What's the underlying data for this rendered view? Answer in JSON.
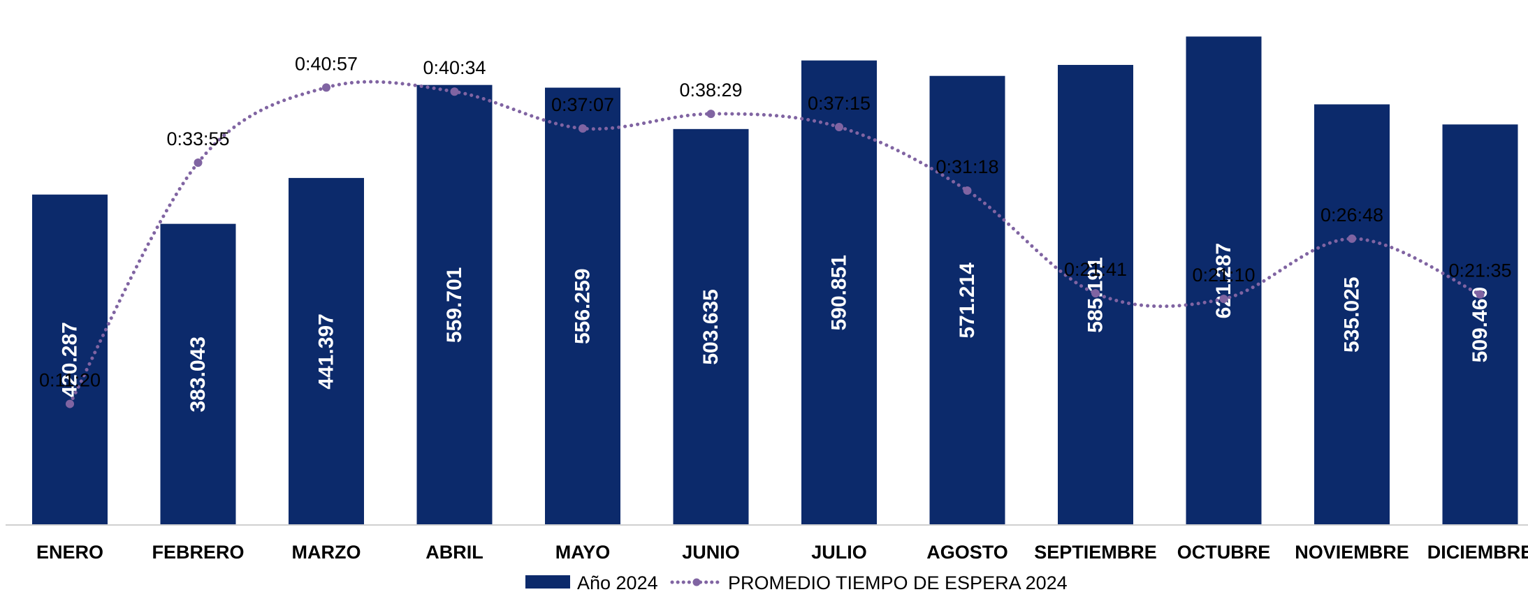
{
  "chart_data": {
    "type": "bar",
    "categories": [
      "ENERO",
      "FEBRERO",
      "MARZO",
      "ABRIL",
      "MAYO",
      "JUNIO",
      "JULIO",
      "AGOSTO",
      "SEPTIEMBRE",
      "OCTUBRE",
      "NOVIEMBRE",
      "DICIEMBRE"
    ],
    "series": [
      {
        "name": "Año 2024",
        "type": "bar",
        "color": "#0c2a6b",
        "values": [
          420287,
          383043,
          441397,
          559701,
          556259,
          503635,
          590851,
          571214,
          585191,
          621287,
          535025,
          509460
        ],
        "labels": [
          "420.287",
          "383.043",
          "441.397",
          "559.701",
          "556.259",
          "503.635",
          "590.851",
          "571.214",
          "585.191",
          "621.287",
          "535.025",
          "509.460"
        ]
      },
      {
        "name": "PROMEDIO TIEMPO DE ESPERA 2024",
        "type": "line",
        "style": "dotted",
        "color": "#8064a2",
        "values": [
          "0:11:20",
          "0:33:55",
          "0:40:57",
          "0:40:34",
          "0:37:07",
          "0:38:29",
          "0:37:15",
          "0:31:18",
          "0:21:41",
          "0:21:10",
          "0:26:48",
          "0:21:35"
        ]
      }
    ],
    "bar_ylim": [
      0,
      650000
    ],
    "line_ylim": [
      "0:00:00",
      "0:47:50"
    ],
    "legend_position": "bottom",
    "grid": false,
    "title": "",
    "xlabel": "",
    "ylabel": ""
  }
}
